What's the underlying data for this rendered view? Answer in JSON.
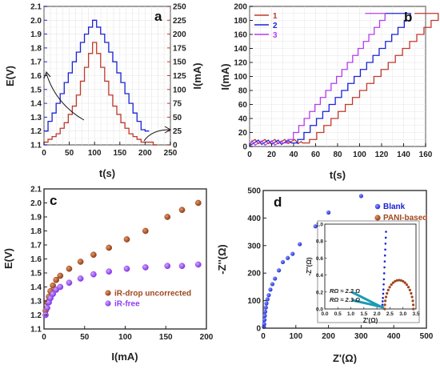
{
  "panels": {
    "a": {
      "label": "a",
      "xlabel": "t(s)",
      "ylabel_left": "E(V)",
      "ylabel_right": "I(mA)"
    },
    "b": {
      "label": "b",
      "xlabel": "t(s)",
      "ylabel": "I(mA)"
    },
    "c": {
      "label": "c",
      "xlabel": "I(mA)",
      "ylabel": "E(V)"
    },
    "d": {
      "label": "d",
      "xlabel": "Z'(Ω)",
      "ylabel": "-Z''(Ω)"
    }
  },
  "colors": {
    "blue": "#1a22d6",
    "red": "#c0392b",
    "purple": "#b43cf0",
    "brown": "#a0471e",
    "violet": "#8f3ff5",
    "teal": "#1b9bb5"
  },
  "chart_data": [
    {
      "id": "a",
      "type": "line",
      "x_range": [
        0,
        250
      ],
      "y_left_range": [
        1.1,
        2.1
      ],
      "y_right_range": [
        0,
        250
      ],
      "xticks": [
        0,
        50,
        100,
        150,
        200,
        250
      ],
      "yticks_left": [
        1.1,
        1.2,
        1.3,
        1.4,
        1.5,
        1.6,
        1.7,
        1.8,
        1.9,
        2.0,
        2.1
      ],
      "yticks_right": [
        0,
        25,
        50,
        75,
        100,
        125,
        150,
        175,
        200,
        225,
        250
      ],
      "grid": true,
      "series": [
        {
          "axis": "left",
          "color": "#1a22d6",
          "steps": [
            [
              0,
              1.2
            ],
            [
              8,
              1.27
            ],
            [
              16,
              1.33
            ],
            [
              24,
              1.4
            ],
            [
              32,
              1.47
            ],
            [
              40,
              1.55
            ],
            [
              48,
              1.62
            ],
            [
              56,
              1.7
            ],
            [
              64,
              1.77
            ],
            [
              72,
              1.84
            ],
            [
              80,
              1.9
            ],
            [
              88,
              1.95
            ],
            [
              96,
              2.0
            ],
            [
              104,
              1.95
            ],
            [
              112,
              1.9
            ],
            [
              120,
              1.84
            ],
            [
              128,
              1.77
            ],
            [
              136,
              1.7
            ],
            [
              144,
              1.62
            ],
            [
              152,
              1.55
            ],
            [
              160,
              1.47
            ],
            [
              168,
              1.4
            ],
            [
              176,
              1.33
            ],
            [
              184,
              1.27
            ],
            [
              192,
              1.21
            ],
            [
              200,
              1.2
            ]
          ]
        },
        {
          "axis": "right",
          "color": "#c0392b",
          "steps": [
            [
              0,
              5
            ],
            [
              8,
              10
            ],
            [
              16,
              15
            ],
            [
              24,
              20
            ],
            [
              32,
              30
            ],
            [
              40,
              40
            ],
            [
              48,
              55
            ],
            [
              56,
              70
            ],
            [
              64,
              90
            ],
            [
              72,
              115
            ],
            [
              80,
              140
            ],
            [
              88,
              165
            ],
            [
              96,
              185
            ],
            [
              104,
              165
            ],
            [
              112,
              140
            ],
            [
              120,
              115
            ],
            [
              128,
              90
            ],
            [
              136,
              70
            ],
            [
              144,
              55
            ],
            [
              152,
              40
            ],
            [
              160,
              30
            ],
            [
              168,
              20
            ],
            [
              176,
              15
            ],
            [
              184,
              10
            ],
            [
              192,
              5
            ],
            [
              200,
              5
            ],
            [
              216,
              0
            ]
          ]
        }
      ]
    },
    {
      "id": "b",
      "type": "line",
      "x_range": [
        0,
        160
      ],
      "y_range": [
        0,
        200
      ],
      "xticks": [
        0,
        20,
        40,
        60,
        80,
        100,
        120,
        140,
        160
      ],
      "yticks": [
        0,
        20,
        40,
        60,
        80,
        100,
        120,
        140,
        160,
        180,
        200
      ],
      "grid": true,
      "legend": "top-left",
      "series": [
        {
          "name": "1",
          "color": "#c0392b",
          "start": 48,
          "dt": 6.5,
          "end": 150
        },
        {
          "name": "2",
          "color": "#1a22d6",
          "start": 38,
          "dt": 5.7,
          "end": 123
        },
        {
          "name": "3",
          "color": "#b43cf0",
          "start": 30,
          "dt": 4.9,
          "end": 105
        }
      ]
    },
    {
      "id": "c",
      "type": "scatter",
      "x_range": [
        0,
        200
      ],
      "y_range": [
        1.1,
        2.1
      ],
      "xticks": [
        0,
        50,
        100,
        150,
        200
      ],
      "yticks": [
        1.1,
        1.2,
        1.3,
        1.4,
        1.5,
        1.6,
        1.7,
        1.8,
        1.9,
        2.0,
        2.1
      ],
      "legend": "bottom-right",
      "series": [
        {
          "name": "iR-drop uncorrected",
          "color": "#a0471e",
          "x": [
            2,
            4,
            6,
            8,
            11,
            15,
            20,
            31,
            45,
            61,
            80,
            102,
            125,
            152,
            170,
            190
          ],
          "y": [
            1.23,
            1.29,
            1.33,
            1.37,
            1.41,
            1.45,
            1.48,
            1.53,
            1.58,
            1.63,
            1.68,
            1.74,
            1.8,
            1.9,
            1.95,
            2.0
          ]
        },
        {
          "name": "iR-free",
          "color": "#8f3ff5",
          "x": [
            2,
            4,
            6,
            8,
            11,
            15,
            20,
            31,
            45,
            61,
            80,
            102,
            125,
            152,
            170,
            190
          ],
          "y": [
            1.2,
            1.25,
            1.29,
            1.32,
            1.35,
            1.38,
            1.4,
            1.43,
            1.46,
            1.49,
            1.51,
            1.53,
            1.54,
            1.55,
            1.55,
            1.56
          ]
        }
      ]
    },
    {
      "id": "d",
      "type": "scatter",
      "x_range": [
        0,
        500
      ],
      "y_range": [
        0,
        500
      ],
      "xticks": [
        0,
        100,
        200,
        300,
        400,
        500
      ],
      "yticks": [
        0,
        100,
        200,
        300,
        400,
        500
      ],
      "legend": "top-right",
      "series": [
        {
          "name": "Blank",
          "color": "#1a22d6",
          "x": [
            2,
            3,
            4,
            5,
            6,
            8,
            10,
            13,
            17,
            22,
            28,
            36,
            48,
            60,
            75,
            90,
            112,
            160,
            200,
            300
          ],
          "y": [
            5,
            15,
            30,
            45,
            60,
            75,
            90,
            105,
            120,
            140,
            160,
            180,
            210,
            240,
            255,
            270,
            305,
            370,
            420,
            480
          ]
        },
        {
          "name": "PANI-based",
          "color": "#a0471e",
          "x": [],
          "y": []
        }
      ],
      "inset": {
        "x_range": [
          0,
          3.5
        ],
        "y_range": [
          0,
          1.0
        ],
        "xticks": [
          0.0,
          0.5,
          1.0,
          1.5,
          2.0,
          2.5,
          3.0,
          3.5
        ],
        "yticks": [
          0.0,
          0.2,
          0.4,
          0.6,
          0.8,
          1.0
        ],
        "xlabel": "Z'(Ω)",
        "ylabel": "-Z''(Ω)",
        "annotations": [
          "RΩ ≈ 2.2 Ω",
          "RΩ ≈ 2.3 Ω"
        ],
        "blank_x": [
          2.2,
          2.21,
          2.22,
          2.23,
          2.24,
          2.25,
          2.26,
          2.27,
          2.28,
          2.29,
          2.3,
          2.31,
          2.32,
          2.33,
          2.34,
          2.35
        ],
        "blank_y": [
          0.02,
          0.05,
          0.09,
          0.13,
          0.18,
          0.23,
          0.29,
          0.35,
          0.42,
          0.49,
          0.56,
          0.63,
          0.7,
          0.77,
          0.84,
          0.91
        ],
        "pani_center": 2.85,
        "pani_radius": 0.55,
        "pani_height": 0.34
      }
    }
  ]
}
